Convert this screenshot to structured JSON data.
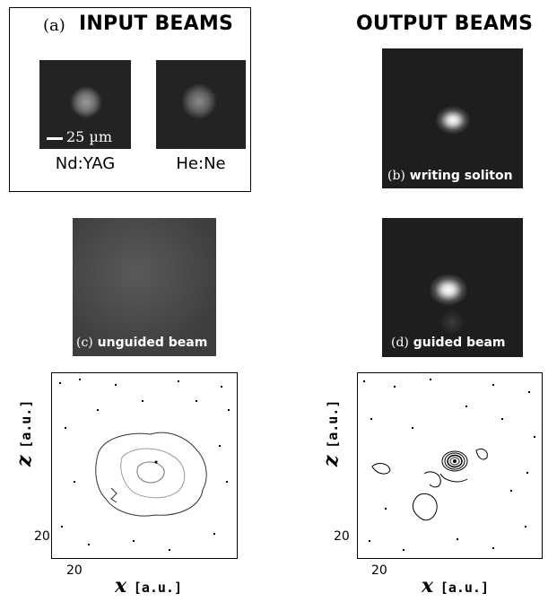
{
  "input_panel": {
    "label": "(a)",
    "title": "INPUT BEAMS",
    "beams": [
      {
        "caption": "Nd:YAG"
      },
      {
        "caption": "He:Ne"
      }
    ],
    "scale_text": "25 µm"
  },
  "output_title": "OUTPUT BEAMS",
  "panels": {
    "b": {
      "label": "(b)",
      "caption": "writing soliton"
    },
    "c": {
      "label": "(c)",
      "caption": "unguided beam"
    },
    "d": {
      "label": "(d)",
      "caption": "guided beam"
    }
  },
  "contour_plots": [
    {
      "y_axis": "z",
      "y_unit": "[a.u.]",
      "x_axis": "x",
      "x_unit": "[a.u.]",
      "y_tick": "20",
      "x_tick": "20"
    },
    {
      "y_axis": "z",
      "y_unit": "[a.u.]",
      "x_axis": "x",
      "x_unit": "[a.u.]",
      "y_tick": "20",
      "x_tick": "20"
    }
  ]
}
